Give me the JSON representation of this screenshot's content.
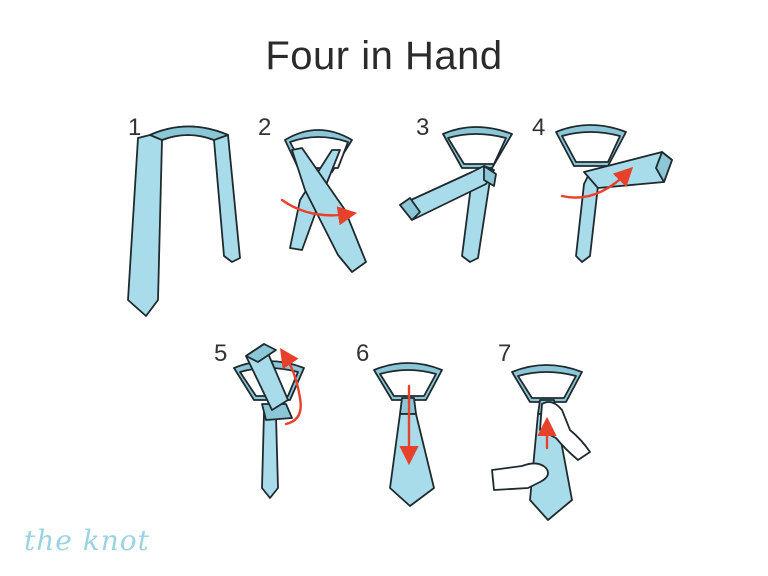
{
  "title": "Four in Hand",
  "steps": [
    {
      "number": "1"
    },
    {
      "number": "2"
    },
    {
      "number": "3"
    },
    {
      "number": "4"
    },
    {
      "number": "5"
    },
    {
      "number": "6"
    },
    {
      "number": "7"
    }
  ],
  "brand": "the knot",
  "colors": {
    "tie_fill": "#a9dcea",
    "tie_shadow": "#8cc7d8",
    "outline": "#1f2a2e",
    "arrow": "#e8412b",
    "brand": "#9cd3e2"
  }
}
